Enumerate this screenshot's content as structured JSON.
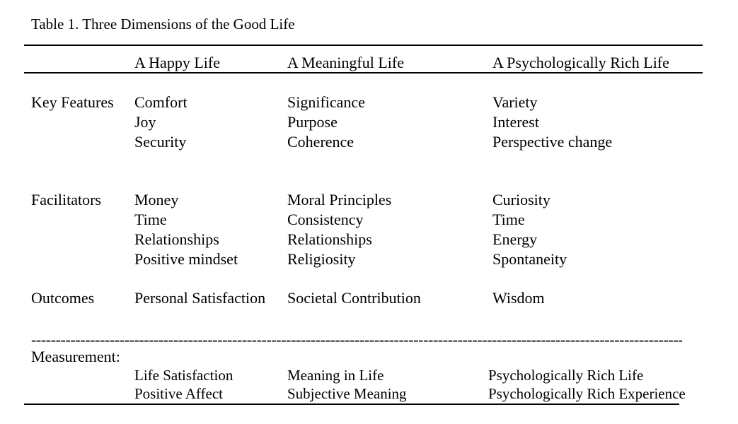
{
  "caption": "Table 1. Three Dimensions of the Good Life",
  "columns": [
    "A Happy Life",
    "A Meaningful Life",
    "A Psychologically Rich Life"
  ],
  "rows": [
    {
      "label": "Key Features",
      "cells": [
        [
          "Comfort",
          "Joy",
          "Security"
        ],
        [
          "Significance",
          "Purpose",
          "Coherence"
        ],
        [
          "Variety",
          "Interest",
          "Perspective change"
        ]
      ]
    },
    {
      "label": "Facilitators",
      "cells": [
        [
          "Money",
          "Time",
          "Relationships",
          "Positive mindset"
        ],
        [
          "Moral Principles",
          "Consistency",
          "Relationships",
          "Religiosity"
        ],
        [
          "Curiosity",
          "Time",
          "Energy",
          "Spontaneity"
        ]
      ]
    },
    {
      "label": "Outcomes",
      "cells": [
        [
          "Personal Satisfaction"
        ],
        [
          "Societal Contribution"
        ],
        [
          "Wisdom"
        ]
      ]
    }
  ],
  "dashes": "------------------------------------------------------------------------------------------------------------------------------------------------",
  "measurement": {
    "label": "Measurement:",
    "cells": [
      [
        "Life Satisfaction",
        "Positive Affect"
      ],
      [
        "Meaning in Life",
        "Subjective Meaning"
      ],
      [
        "Psychologically Rich Life",
        "Psychologically Rich Experience"
      ]
    ]
  }
}
